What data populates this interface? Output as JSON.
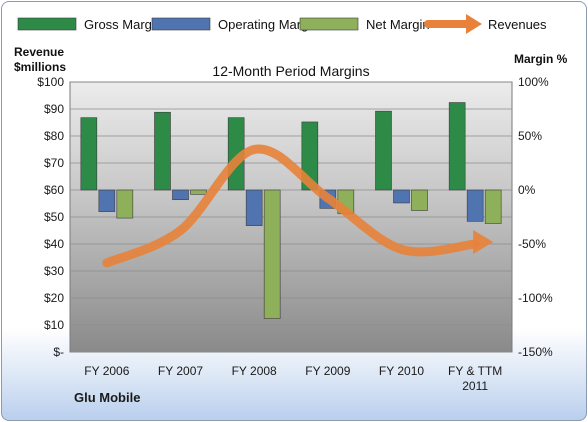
{
  "chart_data": {
    "type": "bar",
    "title": "12-Month Period Margins",
    "categories": [
      "FY 2006",
      "FY 2007",
      "FY 2008",
      "FY 2009",
      "FY 2010",
      "FY & TTM 2011"
    ],
    "category_lines": [
      [
        "FY 2006"
      ],
      [
        "FY 2007"
      ],
      [
        "FY 2008"
      ],
      [
        "FY 2009"
      ],
      [
        "FY 2010"
      ],
      [
        "FY & TTM",
        "2011"
      ]
    ],
    "series": [
      {
        "name": "Gross Margin",
        "values": [
          67,
          72,
          67,
          63,
          73,
          81
        ],
        "color": "#2e8b47"
      },
      {
        "name": "Operating Margin",
        "values": [
          -20,
          -9,
          -33,
          -17,
          -12,
          -29
        ],
        "color": "#4f74b0"
      },
      {
        "name": "Net Margin",
        "values": [
          -26,
          -4,
          -119,
          -22,
          -19,
          -31
        ],
        "color": "#8fb05a"
      }
    ],
    "line_series": {
      "name": "Revenues",
      "values": [
        33,
        45,
        75,
        57,
        38,
        40
      ],
      "color": "#e8823a",
      "axis": "left"
    },
    "left_axis": {
      "title_lines": [
        "Revenue",
        "$millions"
      ],
      "range": [
        0,
        100
      ],
      "ticks": [
        0,
        10,
        20,
        30,
        40,
        50,
        60,
        70,
        80,
        90,
        100
      ],
      "tick_labels": [
        "$-",
        "$10",
        "$20",
        "$30",
        "$40",
        "$50",
        "$60",
        "$70",
        "$80",
        "$90",
        "$100"
      ]
    },
    "right_axis": {
      "title": "Margin %",
      "range": [
        -150,
        100
      ],
      "ticks": [
        -150,
        -100,
        -50,
        0,
        50,
        100
      ],
      "tick_labels": [
        "-150%",
        "-100%",
        "-50%",
        "0%",
        "50%",
        "100%"
      ]
    },
    "legend_position": "top",
    "company": "Glu Mobile",
    "grid": true
  }
}
